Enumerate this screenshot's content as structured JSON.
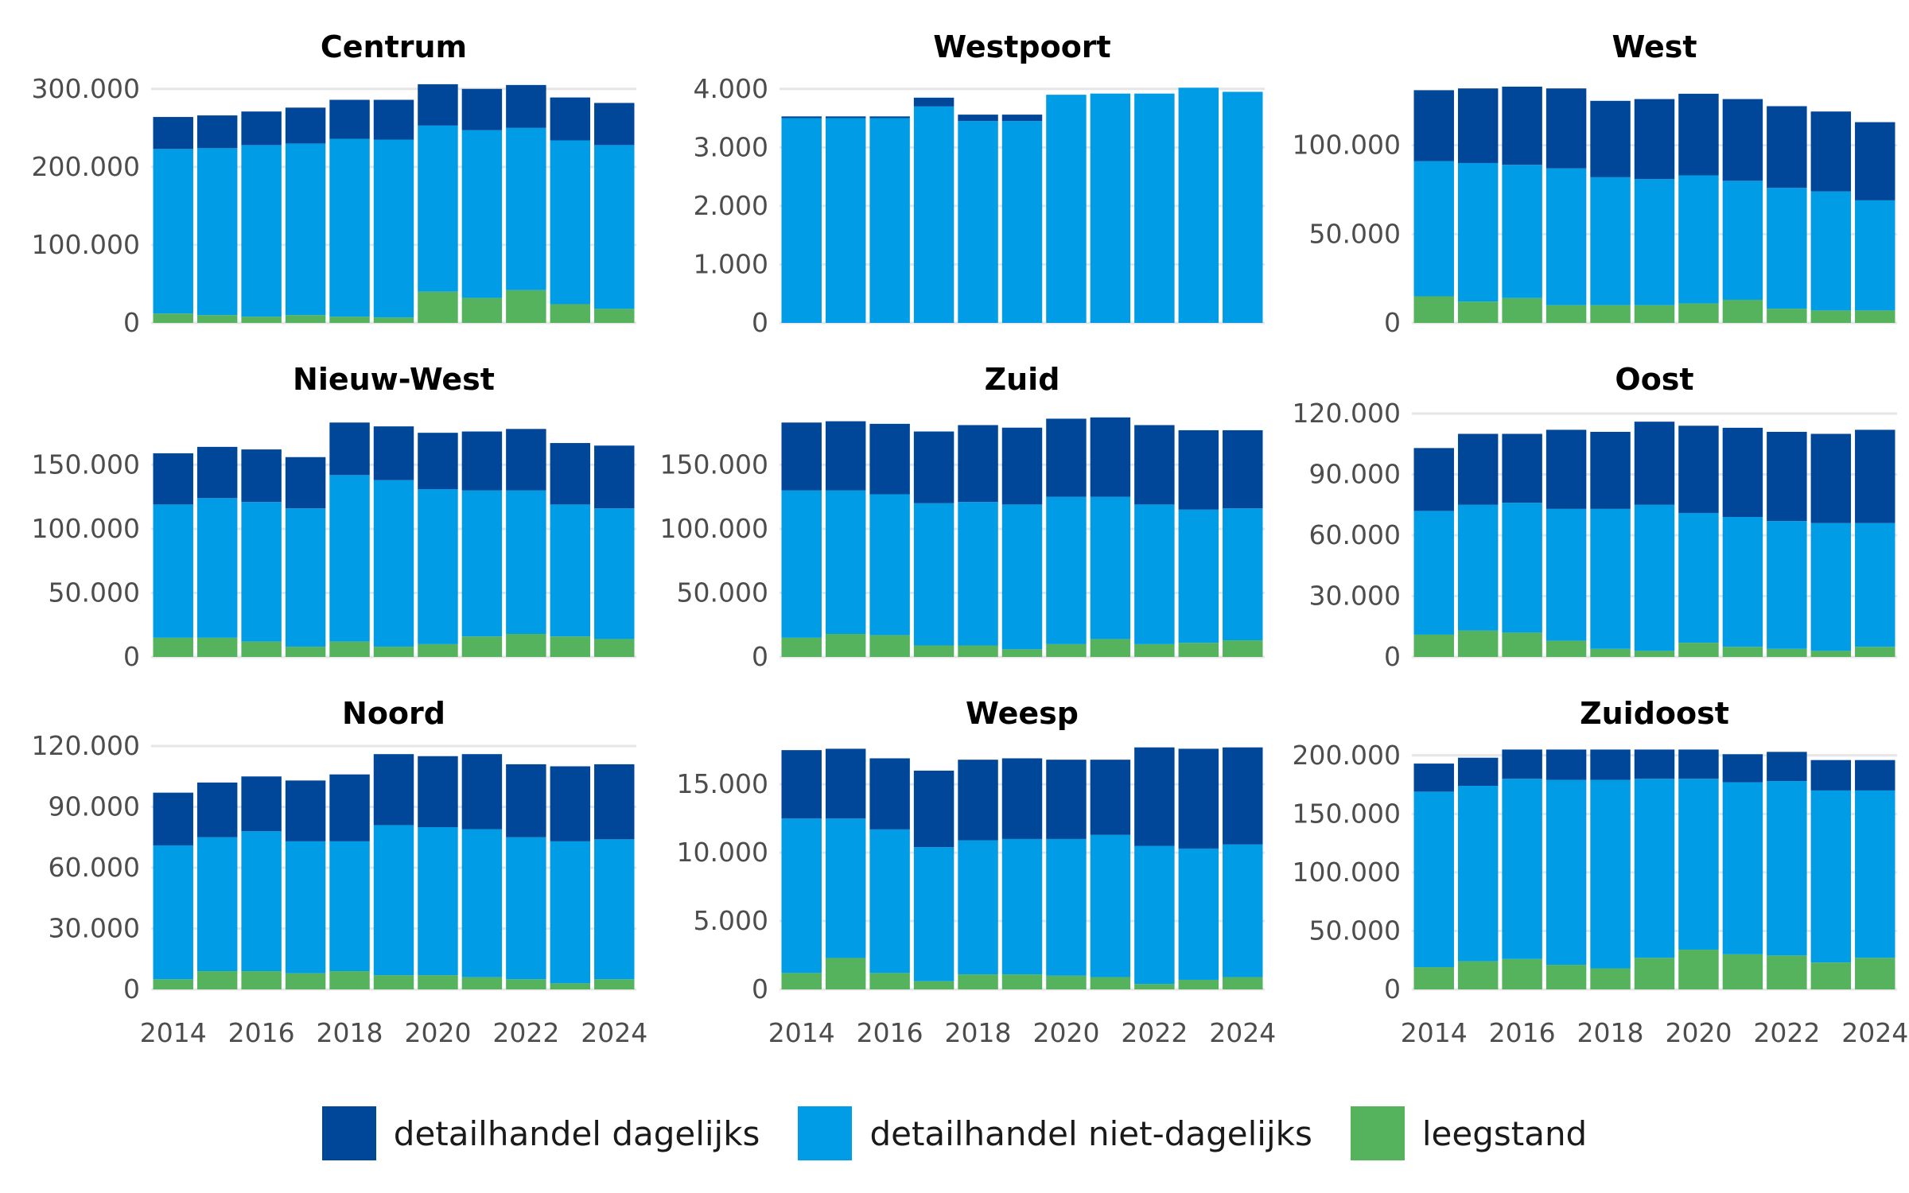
{
  "chart_data": [
    {
      "type": "bar",
      "title": "Centrum",
      "categories": [
        "2014",
        "2015",
        "2016",
        "2017",
        "2018",
        "2019",
        "2020",
        "2021",
        "2022",
        "2023",
        "2024"
      ],
      "series": [
        {
          "name": "leegstand",
          "values": [
            12000,
            10000,
            8000,
            10000,
            8000,
            7000,
            40000,
            32000,
            42000,
            24000,
            18000
          ]
        },
        {
          "name": "detailhandel niet-dagelijks",
          "values": [
            211000,
            214000,
            220000,
            220000,
            228000,
            228000,
            213000,
            215000,
            208000,
            210000,
            210000
          ]
        },
        {
          "name": "detailhandel dagelijks",
          "values": [
            41000,
            42000,
            43000,
            46000,
            50000,
            51000,
            53000,
            53000,
            55000,
            55000,
            54000
          ]
        }
      ],
      "y_ticks": [
        0,
        100000,
        200000,
        300000
      ],
      "y_tick_labels": [
        "0",
        "100.000",
        "200.000",
        "300.000"
      ],
      "ylim": [
        0,
        312000
      ],
      "x_tick_labels": [
        "",
        "",
        "",
        "",
        "",
        "",
        "",
        "",
        "",
        "",
        ""
      ]
    },
    {
      "type": "bar",
      "title": "Westpoort",
      "categories": [
        "2014",
        "2015",
        "2016",
        "2017",
        "2018",
        "2019",
        "2020",
        "2021",
        "2022",
        "2023",
        "2024"
      ],
      "series": [
        {
          "name": "leegstand",
          "values": [
            0,
            0,
            0,
            0,
            0,
            0,
            0,
            0,
            0,
            0,
            0
          ]
        },
        {
          "name": "detailhandel niet-dagelijks",
          "values": [
            3500,
            3500,
            3500,
            3700,
            3450,
            3450,
            3900,
            3920,
            3920,
            4020,
            3950
          ]
        },
        {
          "name": "detailhandel dagelijks",
          "values": [
            30,
            30,
            30,
            150,
            110,
            110,
            0,
            0,
            0,
            0,
            0
          ]
        }
      ],
      "y_ticks": [
        0,
        1000,
        2000,
        3000,
        4000
      ],
      "y_tick_labels": [
        "0",
        "1.000",
        "2.000",
        "3.000",
        "4.000"
      ],
      "ylim": [
        0,
        4160
      ],
      "x_tick_labels": [
        "",
        "",
        "",
        "",
        "",
        "",
        "",
        "",
        "",
        "",
        ""
      ]
    },
    {
      "type": "bar",
      "title": "West",
      "categories": [
        "2014",
        "2015",
        "2016",
        "2017",
        "2018",
        "2019",
        "2020",
        "2021",
        "2022",
        "2023",
        "2024"
      ],
      "series": [
        {
          "name": "leegstand",
          "values": [
            15000,
            12000,
            14000,
            10000,
            10000,
            10000,
            11000,
            13000,
            8000,
            7000,
            7000
          ]
        },
        {
          "name": "detailhandel niet-dagelijks",
          "values": [
            76000,
            78000,
            75000,
            77000,
            72000,
            71000,
            72000,
            67000,
            68000,
            67000,
            62000
          ]
        },
        {
          "name": "detailhandel dagelijks",
          "values": [
            40000,
            42000,
            44000,
            45000,
            43000,
            45000,
            46000,
            46000,
            46000,
            45000,
            44000
          ]
        }
      ],
      "y_ticks": [
        0,
        50000,
        100000
      ],
      "y_tick_labels": [
        "0",
        "50.000",
        "100.000"
      ],
      "ylim": [
        0,
        137000
      ],
      "x_tick_labels": [
        "",
        "",
        "",
        "",
        "",
        "",
        "",
        "",
        "",
        "",
        ""
      ]
    },
    {
      "type": "bar",
      "title": "Nieuw-West",
      "categories": [
        "2014",
        "2015",
        "2016",
        "2017",
        "2018",
        "2019",
        "2020",
        "2021",
        "2022",
        "2023",
        "2024"
      ],
      "series": [
        {
          "name": "leegstand",
          "values": [
            15000,
            15000,
            12000,
            8000,
            12000,
            8000,
            10000,
            16000,
            18000,
            16000,
            14000
          ]
        },
        {
          "name": "detailhandel niet-dagelijks",
          "values": [
            104000,
            109000,
            109000,
            108000,
            130000,
            130000,
            121000,
            114000,
            112000,
            103000,
            102000
          ]
        },
        {
          "name": "detailhandel dagelijks",
          "values": [
            40000,
            40000,
            41000,
            40000,
            41000,
            42000,
            44000,
            46000,
            48000,
            48000,
            49000
          ]
        }
      ],
      "y_ticks": [
        0,
        50000,
        100000,
        150000
      ],
      "y_tick_labels": [
        "0",
        "50.000",
        "100.000",
        "150.000"
      ],
      "ylim": [
        0,
        190000
      ],
      "x_tick_labels": [
        "",
        "",
        "",
        "",
        "",
        "",
        "",
        "",
        "",
        "",
        ""
      ]
    },
    {
      "type": "bar",
      "title": "Zuid",
      "categories": [
        "2014",
        "2015",
        "2016",
        "2017",
        "2018",
        "2019",
        "2020",
        "2021",
        "2022",
        "2023",
        "2024"
      ],
      "series": [
        {
          "name": "leegstand",
          "values": [
            15000,
            18000,
            17000,
            9000,
            9000,
            6000,
            10000,
            14000,
            10000,
            11000,
            13000
          ]
        },
        {
          "name": "detailhandel niet-dagelijks",
          "values": [
            115000,
            112000,
            110000,
            111000,
            112000,
            113000,
            115000,
            111000,
            109000,
            104000,
            103000
          ]
        },
        {
          "name": "detailhandel dagelijks",
          "values": [
            53000,
            54000,
            55000,
            56000,
            60000,
            60000,
            61000,
            62000,
            62000,
            62000,
            61000
          ]
        }
      ],
      "y_ticks": [
        0,
        50000,
        100000,
        150000
      ],
      "y_tick_labels": [
        "0",
        "50.000",
        "100.000",
        "150.000"
      ],
      "ylim": [
        0,
        190000
      ],
      "x_tick_labels": [
        "",
        "",
        "",
        "",
        "",
        "",
        "",
        "",
        "",
        "",
        ""
      ]
    },
    {
      "type": "bar",
      "title": "Oost",
      "categories": [
        "2014",
        "2015",
        "2016",
        "2017",
        "2018",
        "2019",
        "2020",
        "2021",
        "2022",
        "2023",
        "2024"
      ],
      "series": [
        {
          "name": "leegstand",
          "values": [
            11000,
            13000,
            12000,
            8000,
            4000,
            3000,
            7000,
            5000,
            4000,
            3000,
            5000
          ]
        },
        {
          "name": "detailhandel niet-dagelijks",
          "values": [
            61000,
            62000,
            64000,
            65000,
            69000,
            72000,
            64000,
            64000,
            63000,
            63000,
            61000
          ]
        },
        {
          "name": "detailhandel dagelijks",
          "values": [
            31000,
            35000,
            34000,
            39000,
            38000,
            41000,
            43000,
            44000,
            44000,
            44000,
            46000
          ]
        }
      ],
      "y_ticks": [
        0,
        30000,
        60000,
        90000,
        120000
      ],
      "y_tick_labels": [
        "0",
        "30.000",
        "60.000",
        "90.000",
        "120.000"
      ],
      "ylim": [
        0,
        120000
      ],
      "x_tick_labels": [
        "",
        "",
        "",
        "",
        "",
        "",
        "",
        "",
        "",
        "",
        ""
      ]
    },
    {
      "type": "bar",
      "title": "Noord",
      "categories": [
        "2014",
        "2015",
        "2016",
        "2017",
        "2018",
        "2019",
        "2020",
        "2021",
        "2022",
        "2023",
        "2024"
      ],
      "series": [
        {
          "name": "leegstand",
          "values": [
            5000,
            9000,
            9000,
            8000,
            9000,
            7000,
            7000,
            6000,
            5000,
            3000,
            5000
          ]
        },
        {
          "name": "detailhandel niet-dagelijks",
          "values": [
            66000,
            66000,
            69000,
            65000,
            64000,
            74000,
            73000,
            73000,
            70000,
            70000,
            69000
          ]
        },
        {
          "name": "detailhandel dagelijks",
          "values": [
            26000,
            27000,
            27000,
            30000,
            33000,
            35000,
            35000,
            37000,
            36000,
            37000,
            37000
          ]
        }
      ],
      "y_ticks": [
        0,
        30000,
        60000,
        90000,
        120000
      ],
      "y_tick_labels": [
        "0",
        "30.000",
        "60.000",
        "90.000",
        "120.000"
      ],
      "ylim": [
        0,
        120000
      ],
      "x_tick_labels": [
        "2014",
        "",
        "2016",
        "",
        "2018",
        "",
        "2020",
        "",
        "2022",
        "",
        "2024"
      ]
    },
    {
      "type": "bar",
      "title": "Weesp",
      "categories": [
        "2014",
        "2015",
        "2016",
        "2017",
        "2018",
        "2019",
        "2020",
        "2021",
        "2022",
        "2023",
        "2024"
      ],
      "series": [
        {
          "name": "leegstand",
          "values": [
            1200,
            2300,
            1200,
            600,
            1100,
            1100,
            1000,
            900,
            400,
            700,
            900
          ]
        },
        {
          "name": "detailhandel niet-dagelijks",
          "values": [
            11300,
            10200,
            10500,
            9800,
            9800,
            9900,
            10000,
            10400,
            10100,
            9600,
            9700
          ]
        },
        {
          "name": "detailhandel dagelijks",
          "values": [
            5000,
            5100,
            5200,
            5600,
            5900,
            5900,
            5800,
            5500,
            7200,
            7300,
            7100
          ]
        }
      ],
      "y_ticks": [
        0,
        5000,
        10000,
        15000
      ],
      "y_tick_labels": [
        "0",
        "5.000",
        "10.000",
        "15.000"
      ],
      "ylim": [
        0,
        17800
      ],
      "x_tick_labels": [
        "2014",
        "",
        "2016",
        "",
        "2018",
        "",
        "2020",
        "",
        "2022",
        "",
        "2024"
      ]
    },
    {
      "type": "bar",
      "title": "Zuidoost",
      "categories": [
        "2014",
        "2015",
        "2016",
        "2017",
        "2018",
        "2019",
        "2020",
        "2021",
        "2022",
        "2023",
        "2024"
      ],
      "series": [
        {
          "name": "leegstand",
          "values": [
            19000,
            24000,
            26000,
            21000,
            18000,
            27000,
            34000,
            30000,
            29000,
            23000,
            27000
          ]
        },
        {
          "name": "detailhandel niet-dagelijks",
          "values": [
            150000,
            150000,
            154000,
            158000,
            161000,
            153000,
            146000,
            147000,
            149000,
            147000,
            143000
          ]
        },
        {
          "name": "detailhandel dagelijks",
          "values": [
            24000,
            24000,
            25000,
            26000,
            26000,
            25000,
            25000,
            24000,
            25000,
            26000,
            26000
          ]
        }
      ],
      "y_ticks": [
        0,
        50000,
        100000,
        150000,
        200000
      ],
      "y_tick_labels": [
        "0",
        "50.000",
        "100.000",
        "150.000",
        "200.000"
      ],
      "ylim": [
        0,
        208000
      ],
      "x_tick_labels": [
        "2014",
        "",
        "2016",
        "",
        "2018",
        "",
        "2020",
        "",
        "2022",
        "",
        "2024"
      ]
    }
  ],
  "colors": {
    "detailhandel dagelijks": "#004699",
    "detailhandel niet-dagelijks": "#009de6",
    "leegstand": "#56b35d",
    "grid": "#e6e6e6",
    "bar_gap": "#ffffff"
  },
  "grid": true,
  "legend_position": "bottom",
  "legend": [
    {
      "label": "detailhandel dagelijks",
      "color": "#004699"
    },
    {
      "label": "detailhandel niet-dagelijks",
      "color": "#009de6"
    },
    {
      "label": "leegstand",
      "color": "#56b35d"
    }
  ]
}
